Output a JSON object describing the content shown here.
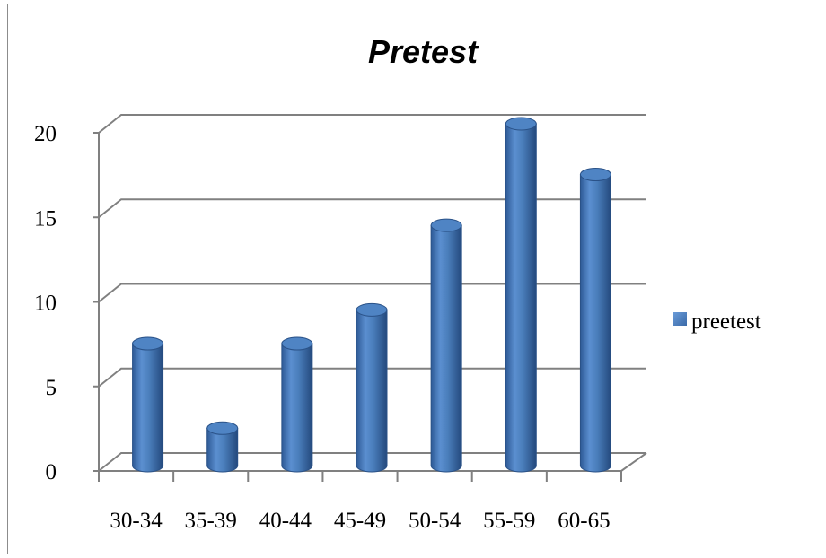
{
  "chart_data": {
    "type": "bar",
    "style": "3d-cylinder",
    "title": "Pretest",
    "categories": [
      "30-34",
      "35-39",
      "40-44",
      "45-49",
      "50-54",
      "55-59",
      "60-65"
    ],
    "series": [
      {
        "name": "preetest",
        "values": [
          7,
          2,
          7,
          9,
          14,
          20,
          17
        ],
        "color": "#4a7ebb"
      }
    ],
    "yticks": [
      "0",
      "5",
      "10",
      "15",
      "20"
    ],
    "ylim": [
      0,
      20
    ],
    "xlabel": "",
    "ylabel": "",
    "grid": true,
    "legend_position": "right"
  }
}
